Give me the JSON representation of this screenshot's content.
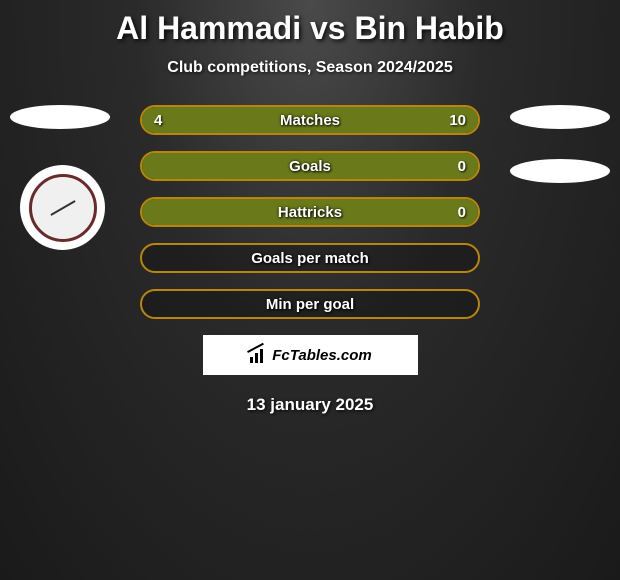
{
  "header": {
    "title": "Al Hammadi vs Bin Habib",
    "subtitle": "Club competitions, Season 2024/2025"
  },
  "stats": {
    "rows": [
      {
        "label": "Matches",
        "left": "4",
        "right": "10",
        "left_pct": 28,
        "right_pct": 72
      },
      {
        "label": "Goals",
        "left": "",
        "right": "0",
        "left_pct": 0,
        "right_pct": 100
      },
      {
        "label": "Hattricks",
        "left": "",
        "right": "0",
        "left_pct": 0,
        "right_pct": 100
      },
      {
        "label": "Goals per match",
        "left": "",
        "right": "",
        "left_pct": 0,
        "right_pct": 0
      },
      {
        "label": "Min per goal",
        "left": "",
        "right": "",
        "left_pct": 0,
        "right_pct": 0
      }
    ],
    "border_color": "#b8860b",
    "fill_color": "#6a7a1a",
    "label_fontsize": 15
  },
  "brand": {
    "text": "FcTables.com"
  },
  "footer": {
    "date": "13 january 2025"
  },
  "colors": {
    "text": "#ffffff",
    "background_inner": "#4a4a4a",
    "background_outer": "#1a1a1a"
  }
}
